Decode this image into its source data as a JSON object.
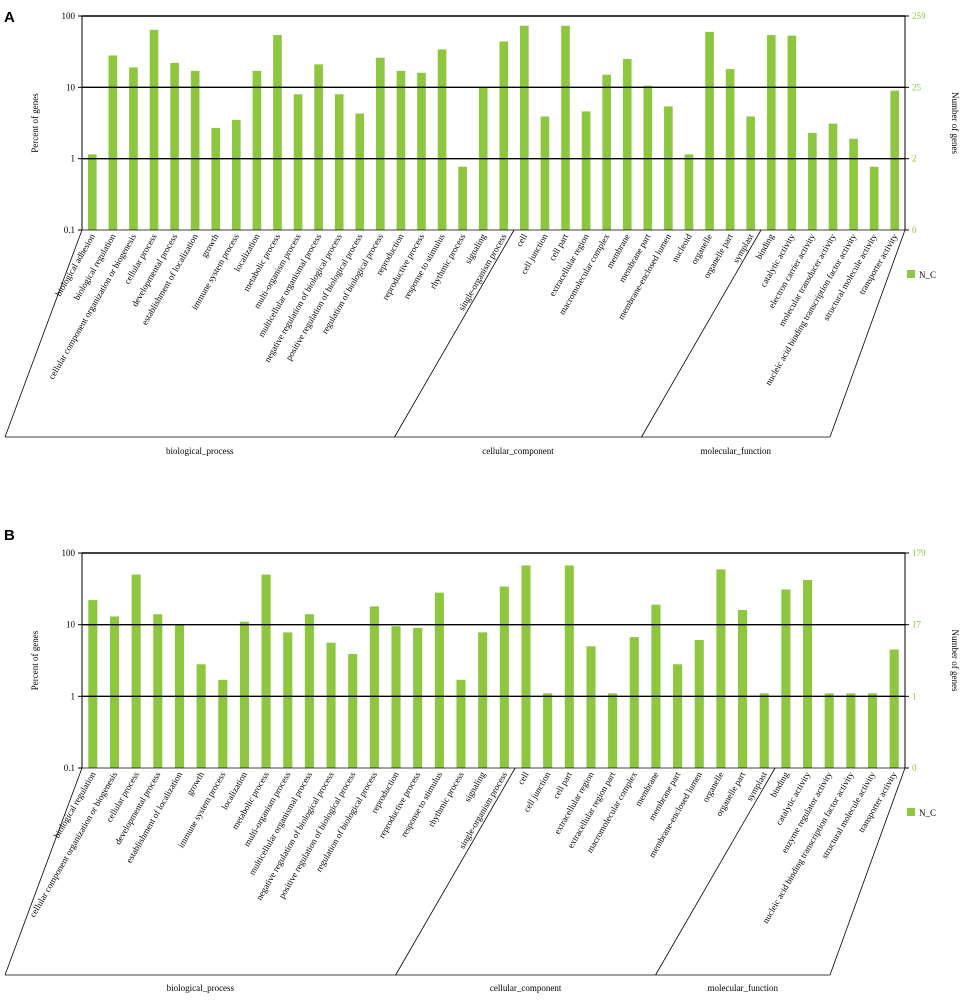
{
  "chart_data": [
    {
      "panel": "A",
      "type": "bar",
      "scale": "log",
      "ylabel": "Percent of genes",
      "ylabel_right": "Number of genes",
      "left_ticks": [
        "100",
        "10",
        "1",
        "0.1"
      ],
      "right_ticks": [
        "259",
        "25",
        "2",
        "0"
      ],
      "ylim": [
        0.1,
        100
      ],
      "legend": [
        "N_C"
      ],
      "legend_position": "right",
      "bar_color": "#8dc63f",
      "categories": [
        "biological adhesion",
        "biological regulation",
        "cellular component organization or biogenesis",
        "cellular process",
        "developmental process",
        "establishment of localization",
        "growth",
        "immune system process",
        "localization",
        "metabolic process",
        "multi-organism process",
        "multicellular organismal process",
        "negative regulation of biological process",
        "positive regulation of biological process",
        "regulation of biological process",
        "reproduction",
        "reproductive process",
        "response to stimulus",
        "rhythmic process",
        "signaling",
        "single-organism process",
        "cell",
        "cell junction",
        "cell part",
        "extracellular region",
        "macromolecular complex",
        "membrane",
        "membrane part",
        "membrane-enclosed lumen",
        "nucleoid",
        "organelle",
        "organelle part",
        "symplast",
        "binding",
        "catalytic activity",
        "electron carrier activity",
        "molecular transducer activity",
        "nucleic acid binding transcription factor activity",
        "structural molecule activity",
        "transporter activity"
      ],
      "values": [
        1.15,
        28,
        19,
        64,
        22,
        17,
        2.7,
        3.5,
        17,
        54,
        8,
        21,
        8,
        4.3,
        26,
        17,
        16,
        34,
        0.77,
        10,
        44,
        73,
        3.9,
        73,
        4.6,
        15,
        25,
        10.5,
        5.4,
        1.15,
        60,
        18,
        3.9,
        54,
        53,
        2.3,
        3.1,
        1.9,
        0.77,
        9
      ],
      "groups": [
        {
          "name": "biological_process",
          "count": 21
        },
        {
          "name": "cellular_component",
          "count": 12
        },
        {
          "name": "molecular_function",
          "count": 7
        }
      ]
    },
    {
      "panel": "B",
      "type": "bar",
      "scale": "log",
      "ylabel": "Percent of genes",
      "ylabel_right": "Number of genes",
      "left_ticks": [
        "100",
        "10",
        "1",
        "0.1"
      ],
      "right_ticks": [
        "179",
        "17",
        "1",
        "0"
      ],
      "ylim": [
        0.1,
        100
      ],
      "legend": [
        "N_C"
      ],
      "legend_position": "right",
      "bar_color": "#8dc63f",
      "categories": [
        "biological regulation",
        "cellular component organization or biogenesis",
        "cellular process",
        "developmental process",
        "establishment of localization",
        "growth",
        "immune system process",
        "localization",
        "metabolic process",
        "multi-organism process",
        "multicellular organismal process",
        "negative regulation of biological process",
        "positive regulation of biological process",
        "regulation of biological process",
        "reproduction",
        "reproductive process",
        "response to stimulus",
        "rhythmic process",
        "signaling",
        "single-organism process",
        "cell",
        "cell junction",
        "cell part",
        "extracellular region",
        "extracellular region part",
        "macromolecular complex",
        "membrane",
        "membrane part",
        "membrane-enclosed lumen",
        "organelle",
        "organelle part",
        "symplast",
        "binding",
        "catalytic activity",
        "enzyme regulator activity",
        "nucleic acid binding transcription factor activity",
        "structural molecule activity",
        "transporter activity"
      ],
      "values": [
        22,
        13,
        50,
        14,
        10,
        2.8,
        1.7,
        11,
        50,
        7.8,
        14,
        5.6,
        3.9,
        18,
        9.5,
        9,
        28,
        1.7,
        7.8,
        34,
        67,
        1.1,
        67,
        5,
        1.1,
        6.7,
        19,
        2.8,
        6.1,
        59,
        16,
        1.1,
        31,
        42,
        1.1,
        1.1,
        1.1,
        4.5
      ],
      "groups": [
        {
          "name": "biological_process",
          "count": 20
        },
        {
          "name": "cellular_component",
          "count": 12
        },
        {
          "name": "molecular_function",
          "count": 6
        }
      ]
    }
  ]
}
